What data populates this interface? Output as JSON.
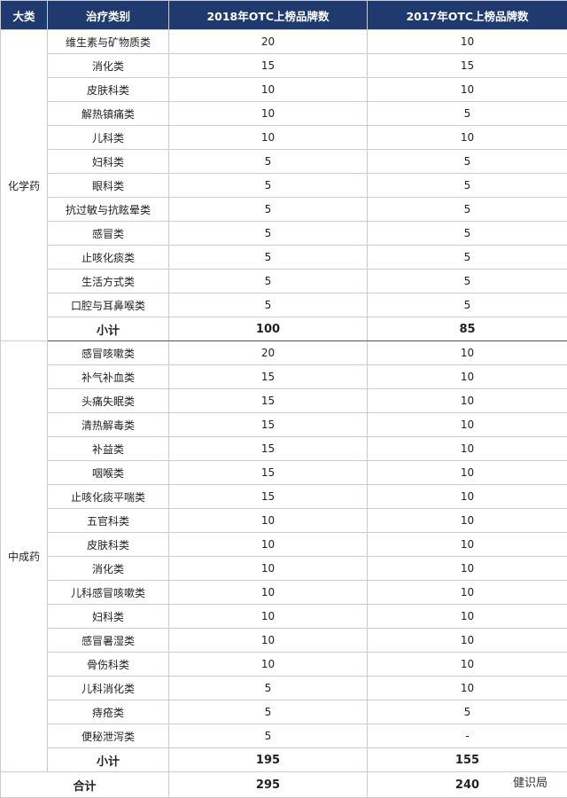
{
  "header": [
    "大类",
    "治疗类别",
    "2018年OTC上榜品牌数",
    "2017年OTC上榜品牌数"
  ],
  "groups": [
    {
      "name": "化学药",
      "rows": [
        [
          "维生素与矿物质类",
          20,
          10
        ],
        [
          "消化类",
          15,
          15
        ],
        [
          "皮肤科类",
          10,
          10
        ],
        [
          "解热镇痛类",
          10,
          5
        ],
        [
          "儿科类",
          10,
          10
        ],
        [
          "妇科类",
          5,
          5
        ],
        [
          "眼科类",
          5,
          5
        ],
        [
          "抗过敏与抗眩晕类",
          5,
          5
        ],
        [
          "感冒类",
          5,
          5
        ],
        [
          "止咳化痰类",
          5,
          5
        ],
        [
          "生活方式类",
          5,
          5
        ],
        [
          "口腔与耳鼻喉类",
          5,
          5
        ]
      ],
      "subtotal": [
        "小计",
        100,
        85
      ]
    },
    {
      "name": "中成药",
      "rows": [
        [
          "感冒咳嗽类",
          20,
          10
        ],
        [
          "补气补血类",
          15,
          10
        ],
        [
          "头痛失眠类",
          15,
          10
        ],
        [
          "清热解毒类",
          15,
          10
        ],
        [
          "补益类",
          15,
          10
        ],
        [
          "咽喉类",
          15,
          10
        ],
        [
          "止咳化痰平喘类",
          15,
          10
        ],
        [
          "五官科类",
          10,
          10
        ],
        [
          "皮肤科类",
          10,
          10
        ],
        [
          "消化类",
          10,
          10
        ],
        [
          "儿科感冒咳嗽类",
          10,
          10
        ],
        [
          "妇科类",
          10,
          10
        ],
        [
          "感冒暑湿类",
          10,
          10
        ],
        [
          "骨伤科类",
          10,
          10
        ],
        [
          "儿科消化类",
          5,
          10
        ],
        [
          "痔疮类",
          5,
          5
        ],
        [
          "便秘泄泻类",
          5,
          "-"
        ]
      ],
      "subtotal": [
        "小计",
        195,
        155
      ]
    }
  ],
  "total": [
    "合计",
    295,
    240
  ],
  "watermark": "健识局"
}
